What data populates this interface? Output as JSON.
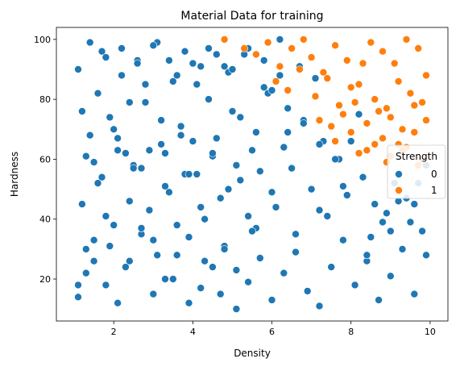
{
  "chart_data": {
    "type": "scatter",
    "title": "Material Data for training",
    "xlabel": "Density",
    "ylabel": "Hardness",
    "xlim": [
      0.55,
      10.45
    ],
    "ylim": [
      6.0,
      104.0
    ],
    "xticks": [
      "2",
      "4",
      "6",
      "8",
      "10"
    ],
    "yticks": [
      "20",
      "40",
      "60",
      "80",
      "100"
    ],
    "grid": false,
    "legend": {
      "title": "Strength",
      "placement": "right",
      "entries": [
        "0",
        "1"
      ]
    },
    "colors": {
      "0": "#1f77b4",
      "1": "#ff7f0e"
    },
    "series": [
      {
        "name": "0",
        "color": "#1f77b4",
        "x": [
          1.1,
          1.3,
          1.5,
          1.8,
          2.1,
          2.4,
          2.7,
          3.0,
          3.3,
          3.6,
          3.9,
          4.2,
          4.5,
          4.8,
          5.1,
          5.4,
          5.7,
          6.0,
          6.3,
          6.6,
          6.9,
          7.2,
          7.5,
          7.8,
          8.1,
          8.4,
          8.7,
          9.0,
          9.3,
          9.6,
          9.9,
          1.2,
          1.6,
          2.0,
          2.5,
          2.9,
          3.4,
          3.8,
          4.3,
          4.7,
          5.2,
          5.6,
          6.1,
          6.5,
          7.0,
          7.4,
          7.9,
          8.3,
          8.8,
          9.2,
          9.7,
          1.4,
          1.9,
          2.3,
          2.8,
          3.2,
          3.7,
          4.1,
          4.6,
          5.0,
          5.5,
          5.9,
          6.4,
          6.8,
          7.3,
          7.7,
          8.2,
          8.6,
          9.1,
          9.5,
          9.9,
          1.1,
          1.7,
          2.2,
          2.6,
          3.1,
          3.5,
          4.0,
          4.4,
          4.9,
          5.3,
          5.8,
          6.2,
          6.7,
          7.1,
          7.6,
          8.0,
          8.5,
          8.9,
          9.4,
          9.8,
          1.3,
          1.8,
          2.4,
          3.0,
          3.6,
          4.2,
          4.8,
          5.4,
          6.0,
          6.6,
          7.2,
          7.8,
          8.4,
          9.0,
          9.6,
          1.5,
          2.1,
          2.7,
          3.3,
          3.9,
          4.5,
          5.1,
          5.7,
          6.3,
          1.2,
          1.6,
          2.0,
          2.4,
          2.8,
          3.2,
          3.6,
          4.0,
          4.4,
          4.8,
          5.2,
          5.6,
          6.0,
          6.4,
          6.8,
          7.2,
          1.4,
          1.8,
          2.2,
          2.6,
          3.0,
          3.4,
          3.8,
          4.2,
          4.6,
          5.0,
          5.4,
          5.8,
          6.2,
          1.1,
          1.5,
          1.9,
          2.3,
          2.7,
          3.1,
          3.5,
          3.9,
          4.3,
          4.7,
          5.1,
          5.5,
          1.3,
          1.7,
          2.1,
          2.5,
          2.9,
          3.3,
          3.7,
          4.1,
          4.5,
          4.9
        ],
        "y": [
          14,
          22,
          33,
          18,
          12,
          26,
          35,
          15,
          20,
          28,
          12,
          17,
          24,
          31,
          10,
          19,
          27,
          13,
          22,
          29,
          16,
          11,
          24,
          33,
          18,
          26,
          13,
          21,
          30,
          15,
          28,
          45,
          52,
          38,
          58,
          43,
          49,
          55,
          40,
          47,
          53,
          37,
          44,
          57,
          50,
          41,
          48,
          54,
          39,
          46,
          52,
          68,
          74,
          62,
          79,
          65,
          71,
          85,
          67,
          76,
          63,
          82,
          69,
          73,
          66,
          60,
          75,
          45,
          52,
          39,
          58,
          90,
          96,
          88,
          93,
          99,
          86,
          92,
          97,
          89,
          95,
          84,
          100,
          91,
          87,
          60,
          66,
          34,
          42,
          47,
          36,
          30,
          41,
          46,
          33,
          38,
          44,
          30,
          41,
          49,
          35,
          43,
          51,
          28,
          36,
          45,
          59,
          63,
          57,
          62,
          55,
          61,
          58,
          56,
          64,
          76,
          82,
          70,
          79,
          85,
          73,
          88,
          66,
          80,
          91,
          74,
          69,
          83,
          77,
          72,
          65,
          99,
          94,
          97,
          92,
          98,
          93,
          96,
          91,
          95,
          90,
          97,
          93,
          88,
          18,
          26,
          31,
          24,
          37,
          28,
          20,
          34,
          26,
          15,
          23,
          36,
          61,
          54,
          67,
          57,
          63,
          51,
          68,
          55,
          62,
          50
        ]
      },
      {
        "name": "1",
        "color": "#ff7f0e",
        "x": [
          4.8,
          5.3,
          5.6,
          5.9,
          6.2,
          6.5,
          6.8,
          7.0,
          7.3,
          7.6,
          7.9,
          8.2,
          8.5,
          8.8,
          9.1,
          9.4,
          9.7,
          9.9,
          6.1,
          6.4,
          6.7,
          7.1,
          7.4,
          7.7,
          8.0,
          8.3,
          8.6,
          8.9,
          9.2,
          9.5,
          9.8,
          7.2,
          7.5,
          7.8,
          8.1,
          8.4,
          8.7,
          9.0,
          9.3,
          9.6,
          9.9,
          7.6,
          8.0,
          8.4,
          8.8,
          9.2,
          9.6,
          8.2,
          8.6,
          9.0,
          9.4,
          9.8,
          8.9,
          9.3,
          9.7
        ],
        "y": [
          100,
          97,
          95,
          99,
          91,
          97,
          100,
          94,
          89,
          98,
          93,
          85,
          99,
          96,
          92,
          100,
          97,
          88,
          86,
          83,
          90,
          81,
          87,
          78,
          84,
          92,
          80,
          77,
          86,
          82,
          79,
          73,
          71,
          75,
          79,
          72,
          76,
          74,
          70,
          78,
          73,
          66,
          69,
          63,
          67,
          65,
          69,
          62,
          65,
          61,
          64,
          60,
          59,
          63,
          58
        ]
      }
    ]
  }
}
